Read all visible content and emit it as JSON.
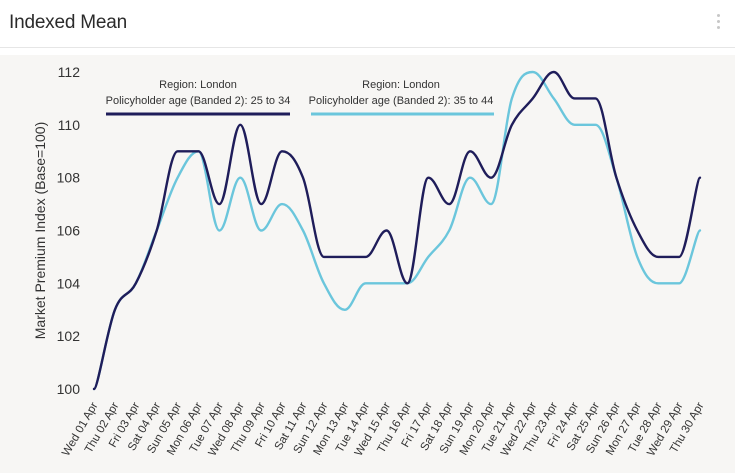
{
  "header": {
    "title": "Indexed Mean"
  },
  "colors": {
    "series1": "#1f1d5a",
    "series2": "#6bc6dc",
    "background": "#f7f6f4"
  },
  "chart_data": {
    "type": "line",
    "title": "",
    "xlabel": "",
    "ylabel": "Market Premium Index (Base=100)",
    "ylim": [
      100,
      112
    ],
    "yticks": [
      100,
      102,
      104,
      106,
      108,
      110,
      112
    ],
    "grid": false,
    "legend_position": "top",
    "x": [
      "Wed 01 Apr",
      "Thu 02 Apr",
      "Fri 03 Apr",
      "Sat 04 Apr",
      "Sun 05 Apr",
      "Mon 06 Apr",
      "Tue 07 Apr",
      "Wed 08 Apr",
      "Thu 09 Apr",
      "Fri 10 Apr",
      "Sat 11 Apr",
      "Sun 12 Apr",
      "Mon 13 Apr",
      "Tue 14 Apr",
      "Wed 15 Apr",
      "Thu 16 Apr",
      "Fri 17 Apr",
      "Sat 18 Apr",
      "Sun 19 Apr",
      "Mon 20 Apr",
      "Tue 21 Apr",
      "Wed 22 Apr",
      "Thu 23 Apr",
      "Fri 24 Apr",
      "Sat 25 Apr",
      "Sun 26 Apr",
      "Mon 27 Apr",
      "Tue 28 Apr",
      "Wed 29 Apr",
      "Thu 30 Apr"
    ],
    "series": [
      {
        "name_line1": "Region: London",
        "name_line2": "Policyholder age (Banded 2): 25 to 34",
        "color": "#1f1d5a",
        "values": [
          100,
          103,
          104,
          106,
          109,
          109,
          107,
          110,
          107,
          109,
          108,
          105,
          105,
          105,
          106,
          104,
          108,
          107,
          109,
          108,
          110,
          111,
          112,
          111,
          111,
          108,
          106,
          105,
          105,
          108
        ]
      },
      {
        "name_line1": "Region: London",
        "name_line2": "Policyholder age (Banded 2): 35 to 44",
        "color": "#6bc6dc",
        "values": [
          100,
          103,
          104,
          106,
          108,
          109,
          106,
          108,
          106,
          107,
          106,
          104,
          103,
          104,
          104,
          104,
          105,
          106,
          108,
          107,
          111,
          112,
          111,
          110,
          110,
          108,
          105,
          104,
          104,
          106
        ]
      }
    ]
  }
}
